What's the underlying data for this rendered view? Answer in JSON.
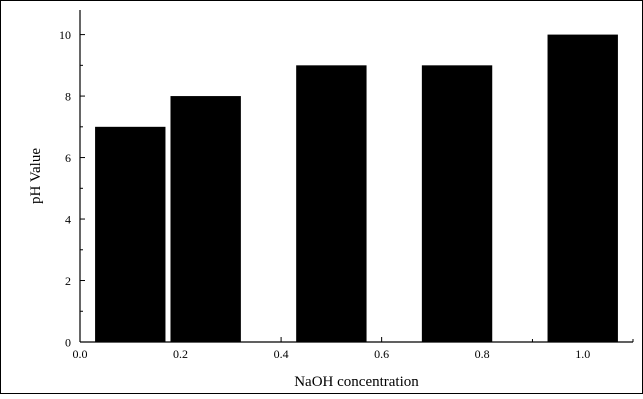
{
  "chart_data": {
    "type": "bar",
    "title": "",
    "xlabel": "NaOH concentration",
    "ylabel": "pH Value",
    "xlim": [
      0.0,
      1.1
    ],
    "ylim": [
      0,
      10.8
    ],
    "x_ticks": [
      0.0,
      0.2,
      0.4,
      0.6,
      0.8,
      1.0
    ],
    "x_tick_labels": [
      "0.0",
      "0.2",
      "0.4",
      "0.6",
      "0.8",
      "1.0"
    ],
    "y_ticks": [
      0,
      2,
      4,
      6,
      8,
      10
    ],
    "y_tick_labels": [
      "0",
      "2",
      "4",
      "6",
      "8",
      "10"
    ],
    "grid": false,
    "legend": "none",
    "bar_color": "#000000",
    "bars": [
      {
        "x_start": 0.03,
        "x_end": 0.17,
        "value": 7
      },
      {
        "x_start": 0.18,
        "x_end": 0.32,
        "value": 8
      },
      {
        "x_start": 0.43,
        "x_end": 0.57,
        "value": 9
      },
      {
        "x_start": 0.68,
        "x_end": 0.82,
        "value": 9
      },
      {
        "x_start": 0.93,
        "x_end": 1.07,
        "value": 10
      }
    ]
  }
}
